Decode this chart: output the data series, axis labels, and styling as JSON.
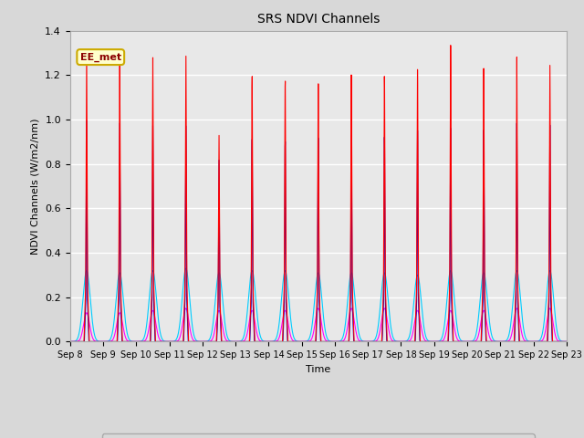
{
  "title": "SRS NDVI Channels",
  "ylabel": "NDVI Channels (W/m2/nm)",
  "xlabel": "Time",
  "ylim": [
    0.0,
    1.4
  ],
  "yticks": [
    0.0,
    0.2,
    0.4,
    0.6,
    0.8,
    1.0,
    1.2,
    1.4
  ],
  "xtick_labels": [
    "Sep 8",
    "Sep 9",
    "Sep 10",
    "Sep 11",
    "Sep 12",
    "Sep 13",
    "Sep 14",
    "Sep 15",
    "Sep 16",
    "Sep 17",
    "Sep 18",
    "Sep 19",
    "Sep 20",
    "Sep 21",
    "Sep 22",
    "Sep 23"
  ],
  "annotation_text": "EE_met",
  "colors": {
    "NDVI_650in": "#ff0000",
    "NDVI_810in": "#0000cc",
    "NDVI_650out": "#ff00ff",
    "NDVI_810out": "#00ccff"
  },
  "background_color": "#e8e8e8",
  "fig_background": "#d8d8d8",
  "grid_color": "#ffffff",
  "num_days": 15,
  "peaks_650in": [
    1.31,
    1.31,
    1.31,
    1.33,
    0.97,
    1.26,
    1.25,
    1.25,
    1.28,
    1.26,
    1.28,
    1.38,
    1.26,
    1.3,
    1.25
  ],
  "peaks_810in": [
    1.0,
    1.0,
    1.0,
    1.01,
    0.86,
    0.97,
    0.97,
    1.0,
    1.0,
    0.98,
    1.0,
    1.0,
    0.98,
    1.0,
    0.98
  ],
  "peaks_650out": [
    0.13,
    0.13,
    0.14,
    0.15,
    0.14,
    0.14,
    0.14,
    0.15,
    0.15,
    0.15,
    0.14,
    0.14,
    0.14,
    0.15,
    0.15
  ],
  "peaks_810out": [
    0.32,
    0.31,
    0.32,
    0.33,
    0.31,
    0.32,
    0.32,
    0.31,
    0.31,
    0.31,
    0.3,
    0.32,
    0.31,
    0.32,
    0.32
  ]
}
